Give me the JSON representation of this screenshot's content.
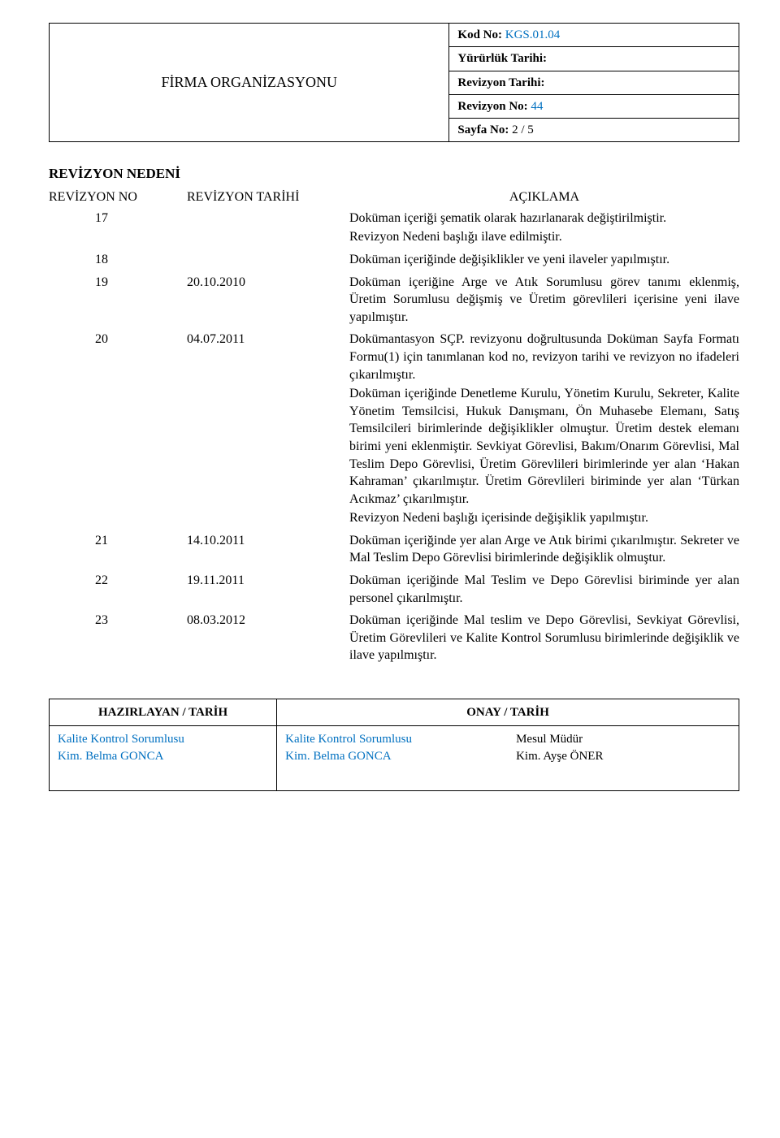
{
  "header": {
    "title": "FİRMA ORGANİZASYONU",
    "rows": [
      {
        "label": "Kod No: ",
        "value": "KGS.01.04"
      },
      {
        "label": "Yürürlük Tarihi:",
        "value": ""
      },
      {
        "label": "Revizyon Tarihi:",
        "value": ""
      },
      {
        "label": "Revizyon No: ",
        "value": "44"
      },
      {
        "label": "Sayfa No: ",
        "value": "2 / 5"
      }
    ]
  },
  "section_title": "REVİZYON NEDENİ",
  "columns": {
    "c1": "REVİZYON NO",
    "c2": "REVİZYON TARİHİ",
    "c3": "AÇIKLAMA"
  },
  "revisions": [
    {
      "no": "17",
      "date": "",
      "text": "Doküman içeriği şematik olarak hazırlanarak değiştirilmiştir.\nRevizyon Nedeni başlığı ilave edilmiştir."
    },
    {
      "no": "18",
      "date": "",
      "text": "Doküman içeriğinde değişiklikler ve yeni ilaveler yapılmıştır."
    },
    {
      "no": "19",
      "date": "20.10.2010",
      "text": "Doküman içeriğine Arge ve Atık Sorumlusu görev tanımı eklenmiş, Üretim Sorumlusu değişmiş ve Üretim görevlileri içerisine yeni ilave yapılmıştır."
    },
    {
      "no": "20",
      "date": "04.07.2011",
      "text": "Dokümantasyon SÇP. revizyonu doğrultusunda Doküman Sayfa Formatı Formu(1) için tanımlanan kod no, revizyon tarihi ve revizyon no ifadeleri çıkarılmıştır.\nDoküman içeriğinde Denetleme Kurulu, Yönetim Kurulu, Sekreter, Kalite Yönetim Temsilcisi, Hukuk Danışmanı, Ön Muhasebe Elemanı, Satış Temsilcileri birimlerinde değişiklikler olmuştur. Üretim destek elemanı birimi yeni eklenmiştir. Sevkiyat Görevlisi, Bakım/Onarım Görevlisi, Mal Teslim Depo Görevlisi, Üretim Görevlileri birimlerinde yer alan ‘Hakan Kahraman’ çıkarılmıştır. Üretim Görevlileri biriminde yer alan ‘Türkan Acıkmaz’ çıkarılmıştır.\nRevizyon Nedeni başlığı içerisinde değişiklik yapılmıştır."
    },
    {
      "no": "21",
      "date": "14.10.2011",
      "text": "Doküman içeriğinde yer alan Arge ve Atık birimi çıkarılmıştır. Sekreter ve Mal Teslim Depo Görevlisi birimlerinde değişiklik olmuştur."
    },
    {
      "no": "22",
      "date": "19.11.2011",
      "text": "Doküman içeriğinde Mal Teslim ve Depo Görevlisi biriminde yer alan personel çıkarılmıştır."
    },
    {
      "no": "23",
      "date": "08.03.2012",
      "text": "Doküman içeriğinde Mal teslim ve Depo Görevlisi, Sevkiyat Görevlisi, Üretim Görevlileri ve Kalite Kontrol Sorumlusu birimlerinde değişiklik ve ilave yapılmıştır."
    }
  ],
  "footer": {
    "left_head": "HAZIRLAYAN / TARİH",
    "right_head": "ONAY / TARİH",
    "left_role": "Kalite Kontrol Sorumlusu",
    "left_name": "Kim. Belma GONCA",
    "mid_role": "Kalite Kontrol Sorumlusu",
    "mid_name": "Kim. Belma GONCA",
    "right_role": "Mesul Müdür",
    "right_name": "Kim. Ayşe ÖNER"
  }
}
